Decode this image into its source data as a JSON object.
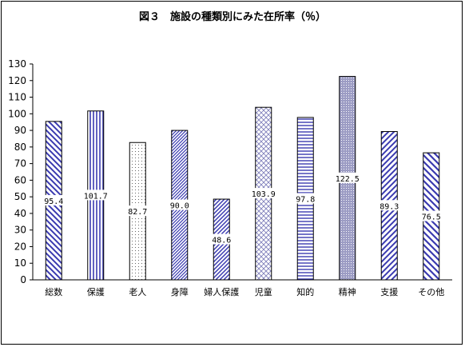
{
  "chart_data": {
    "type": "bar",
    "title": "図３　施設の種類別にみた在所率（％）",
    "categories": [
      "総数",
      "保護",
      "老人",
      "身障",
      "婦人保護",
      "児童",
      "知的",
      "精神",
      "支援",
      "その他"
    ],
    "values": [
      95.4,
      101.7,
      82.7,
      90.0,
      48.6,
      103.9,
      97.8,
      122.5,
      89.3,
      76.5
    ],
    "value_labels": [
      "95.4",
      "101.7",
      "82.7",
      "90.0",
      "48.6",
      "103.9",
      "97.8",
      "122.5",
      "89.3",
      "76.5"
    ],
    "ylim": [
      0,
      130
    ],
    "yticks": [
      "0",
      "10",
      "20",
      "30",
      "40",
      "50",
      "60",
      "70",
      "80",
      "90",
      "100",
      "110",
      "120",
      "130"
    ],
    "xlabel": "",
    "ylabel": "",
    "grid": false,
    "legend": "none",
    "bar_patterns": [
      "diag-down",
      "vertical",
      "dots",
      "diag-up-dense",
      "diag-up",
      "cross",
      "horizontal",
      "crosshatch",
      "diag-up-wide",
      "diag-down-wide"
    ],
    "colors": {
      "pattern": "#3a3ab0",
      "dots": "#666666",
      "axis": "#000000"
    }
  }
}
